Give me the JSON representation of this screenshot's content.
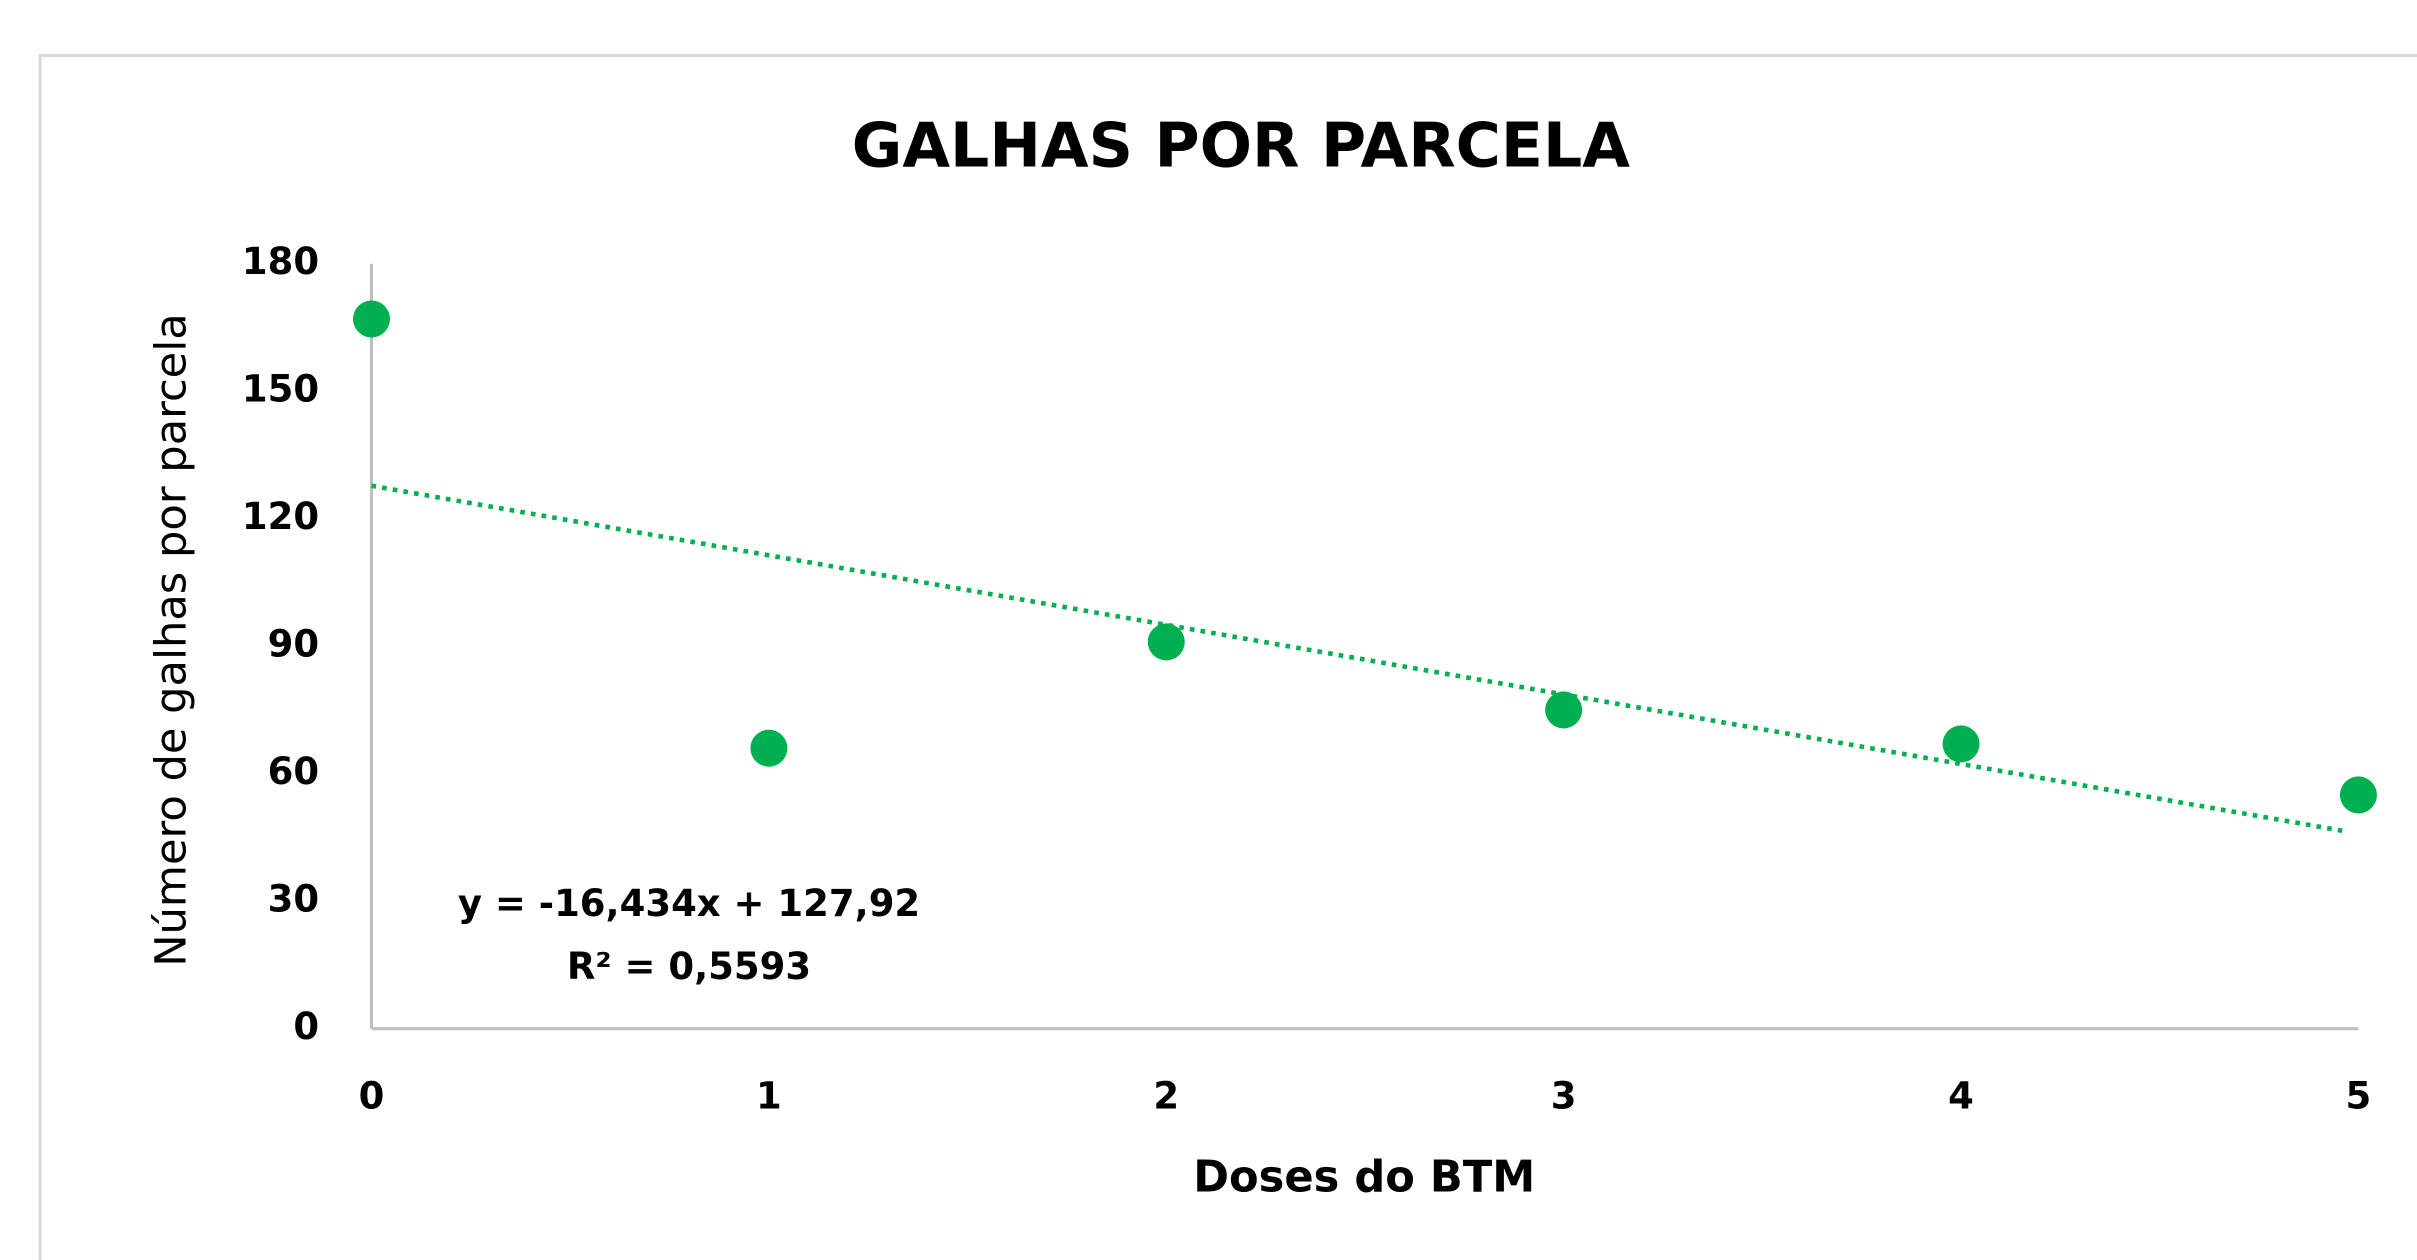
{
  "chart_data": {
    "type": "scatter",
    "title": "GALHAS POR PARCELA",
    "x_label": "Doses do BTM",
    "y_label": "Número de galhas por parcela",
    "x": [
      0,
      1,
      2,
      3,
      4,
      5
    ],
    "values": [
      167,
      66,
      91,
      75,
      67,
      55
    ],
    "color": "#00b050",
    "xlim": [
      0,
      5
    ],
    "xticks": [
      0,
      1,
      2,
      3,
      4,
      5
    ],
    "ylim": [
      0,
      180
    ],
    "yticks": [
      0,
      30,
      60,
      90,
      120,
      150,
      180
    ],
    "grid": false,
    "trendline": "linear",
    "annotations": [
      "y = -16,434x + 127,92",
      "R² = 0,5593"
    ]
  }
}
